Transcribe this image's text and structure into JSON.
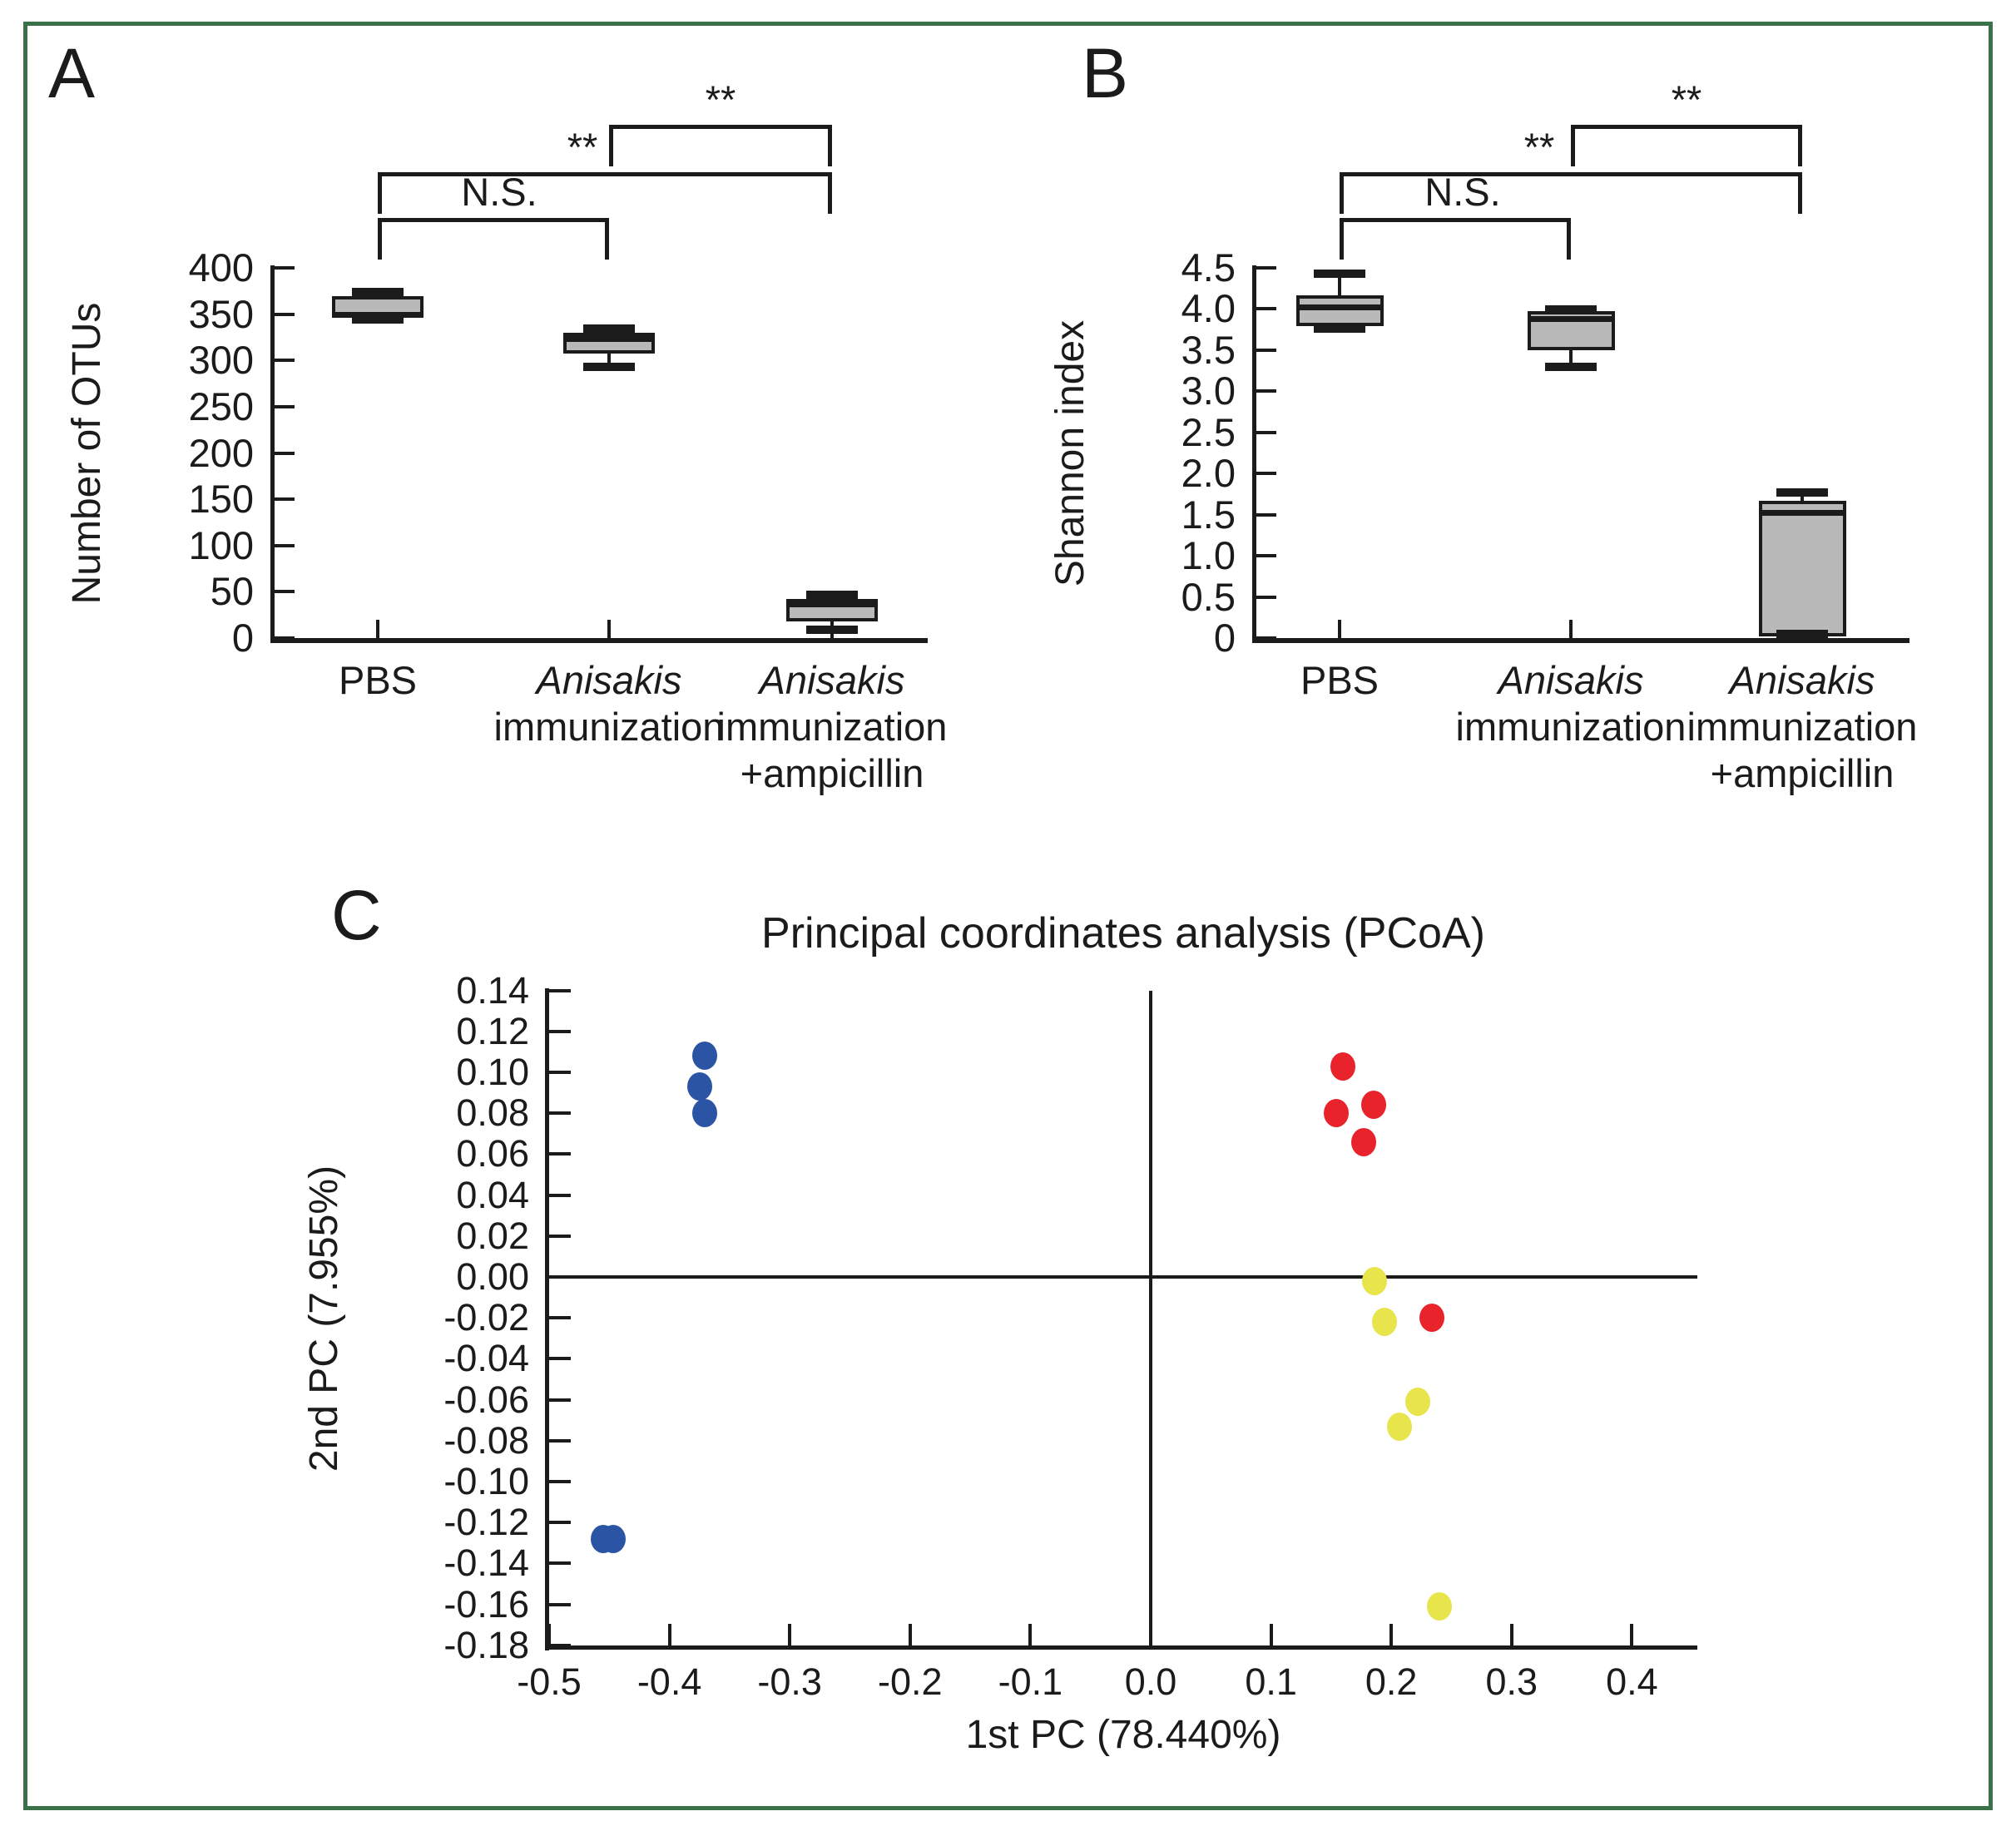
{
  "colors": {
    "ink": "#1b1b1b",
    "box_fill": "#b9b9b9",
    "frame": "#3a7148",
    "blue": "#2b54a4",
    "red": "#e8232b",
    "yellow": "#e7e44c"
  },
  "panel_a": {
    "label": "A",
    "y_axis_label": "Number of OTUs",
    "y_ticks": [
      "400",
      "350",
      "300",
      "250",
      "200",
      "150",
      "100",
      "50",
      "0"
    ],
    "groups": [
      {
        "lines": [
          {
            "text": "PBS",
            "italic": false
          }
        ]
      },
      {
        "lines": [
          {
            "text": "Anisakis",
            "italic": true
          },
          {
            "text": "immunization",
            "italic": false
          }
        ]
      },
      {
        "lines": [
          {
            "text": "Anisakis",
            "italic": true
          },
          {
            "text": "immunization",
            "italic": false
          },
          {
            "text": "+ampicillin",
            "italic": false
          }
        ]
      }
    ],
    "boxes": [
      {
        "group": "PBS",
        "min": 344,
        "q1": 347,
        "median": 350,
        "q3": 369,
        "max": 374
      },
      {
        "group": "Anisakis immunization",
        "min": 293,
        "q1": 307,
        "median": 324,
        "q3": 330,
        "max": 334
      },
      {
        "group": "Anisakis immunization +ampicillin",
        "min": 9,
        "q1": 18,
        "median": 37,
        "q3": 42,
        "max": 47
      }
    ],
    "significance": [
      {
        "between": [
          0,
          1
        ],
        "label": "N.S."
      },
      {
        "between": [
          0,
          2
        ],
        "label": "**"
      },
      {
        "between": [
          1,
          2
        ],
        "label": "**"
      }
    ]
  },
  "panel_b": {
    "label": "B",
    "y_axis_label": "Shannon index",
    "y_ticks": [
      "4.5",
      "4.0",
      "3.5",
      "3.0",
      "2.5",
      "2.0",
      "1.5",
      "1.0",
      "0.5",
      "0"
    ],
    "groups": [
      {
        "lines": [
          {
            "text": "PBS",
            "italic": false
          }
        ]
      },
      {
        "lines": [
          {
            "text": "Anisakis",
            "italic": true
          },
          {
            "text": "immunization",
            "italic": false
          }
        ]
      },
      {
        "lines": [
          {
            "text": "Anisakis",
            "italic": true
          },
          {
            "text": "immunization",
            "italic": false
          },
          {
            "text": "+ampicillin",
            "italic": false
          }
        ]
      }
    ],
    "boxes": [
      {
        "group": "PBS",
        "min": 3.76,
        "q1": 3.79,
        "median": 4.02,
        "q3": 4.17,
        "max": 4.43
      },
      {
        "group": "Anisakis immunization",
        "min": 3.3,
        "q1": 3.5,
        "median": 3.88,
        "q3": 3.97,
        "max": 3.99
      },
      {
        "group": "Anisakis immunization +ampicillin",
        "min": 0.05,
        "q1": 0.02,
        "median": 1.53,
        "q3": 1.67,
        "max": 1.77
      }
    ],
    "significance": [
      {
        "between": [
          0,
          1
        ],
        "label": "N.S."
      },
      {
        "between": [
          0,
          2
        ],
        "label": "**"
      },
      {
        "between": [
          1,
          2
        ],
        "label": "**"
      }
    ]
  },
  "panel_c": {
    "label": "C",
    "title": "Principal coordinates analysis (PCoA)",
    "x_axis_label": "1st PC (78.440%)",
    "y_axis_label": "2nd PC (7.955%)",
    "x_ticks": [
      "-0.5",
      "-0.4",
      "-0.3",
      "-0.2",
      "-0.1",
      "0.0",
      "0.1",
      "0.2",
      "0.3",
      "0.4"
    ],
    "y_ticks": [
      "0.14",
      "0.12",
      "0.10",
      "0.08",
      "0.06",
      "0.04",
      "0.02",
      "0.00",
      "-0.02",
      "-0.04",
      "-0.06",
      "-0.08",
      "-0.10",
      "-0.12",
      "-0.14",
      "-0.16",
      "-0.18"
    ],
    "series": [
      {
        "name": "blue",
        "color_key": "blue",
        "points": [
          [
            -0.371,
            0.108
          ],
          [
            -0.375,
            0.093
          ],
          [
            -0.371,
            0.08
          ],
          [
            -0.455,
            -0.128
          ],
          [
            -0.447,
            -0.128
          ]
        ]
      },
      {
        "name": "red",
        "color_key": "red",
        "points": [
          [
            0.16,
            0.103
          ],
          [
            0.154,
            0.08
          ],
          [
            0.185,
            0.084
          ],
          [
            0.177,
            0.066
          ],
          [
            0.234,
            -0.02
          ]
        ]
      },
      {
        "name": "yellow",
        "color_key": "yellow",
        "points": [
          [
            0.186,
            -0.002
          ],
          [
            0.194,
            -0.022
          ],
          [
            0.222,
            -0.061
          ],
          [
            0.207,
            -0.073
          ],
          [
            0.24,
            -0.161
          ]
        ]
      }
    ]
  },
  "chart_data": [
    {
      "type": "boxplot",
      "panel": "A",
      "ylabel": "Number of OTUs",
      "ylim": [
        0,
        400
      ],
      "ytick_step": 50,
      "categories": [
        "PBS",
        "Anisakis immunization",
        "Anisakis immunization +ampicillin"
      ],
      "boxes": [
        {
          "min": 344,
          "q1": 347,
          "median": 350,
          "q3": 369,
          "max": 374
        },
        {
          "min": 293,
          "q1": 307,
          "median": 324,
          "q3": 330,
          "max": 334
        },
        {
          "min": 9,
          "q1": 18,
          "median": 37,
          "q3": 42,
          "max": 47
        }
      ],
      "significance": [
        {
          "pair": [
            "PBS",
            "Anisakis immunization"
          ],
          "label": "N.S."
        },
        {
          "pair": [
            "PBS",
            "Anisakis immunization +ampicillin"
          ],
          "label": "**"
        },
        {
          "pair": [
            "Anisakis immunization",
            "Anisakis immunization +ampicillin"
          ],
          "label": "**"
        }
      ]
    },
    {
      "type": "boxplot",
      "panel": "B",
      "ylabel": "Shannon index",
      "ylim": [
        0,
        4.5
      ],
      "ytick_step": 0.5,
      "categories": [
        "PBS",
        "Anisakis immunization",
        "Anisakis immunization +ampicillin"
      ],
      "boxes": [
        {
          "min": 3.76,
          "q1": 3.79,
          "median": 4.02,
          "q3": 4.17,
          "max": 4.43
        },
        {
          "min": 3.3,
          "q1": 3.5,
          "median": 3.88,
          "q3": 3.97,
          "max": 3.99
        },
        {
          "min": 0.05,
          "q1": 0.02,
          "median": 1.53,
          "q3": 1.67,
          "max": 1.77
        }
      ],
      "significance": [
        {
          "pair": [
            "PBS",
            "Anisakis immunization"
          ],
          "label": "N.S."
        },
        {
          "pair": [
            "PBS",
            "Anisakis immunization +ampicillin"
          ],
          "label": "**"
        },
        {
          "pair": [
            "Anisakis immunization",
            "Anisakis immunization +ampicillin"
          ],
          "label": "**"
        }
      ]
    },
    {
      "type": "scatter",
      "panel": "C",
      "title": "Principal coordinates analysis (PCoA)",
      "xlabel": "1st PC (78.440%)",
      "ylabel": "2nd PC (7.955%)",
      "xlim": [
        -0.5,
        0.4
      ],
      "ylim": [
        -0.18,
        0.14
      ],
      "grid": false,
      "legend": "none",
      "series": [
        {
          "name": "blue",
          "color": "#2b54a4",
          "points": [
            [
              -0.371,
              0.108
            ],
            [
              -0.375,
              0.093
            ],
            [
              -0.371,
              0.08
            ],
            [
              -0.455,
              -0.128
            ],
            [
              -0.447,
              -0.128
            ]
          ]
        },
        {
          "name": "red",
          "color": "#e8232b",
          "points": [
            [
              0.16,
              0.103
            ],
            [
              0.154,
              0.08
            ],
            [
              0.185,
              0.084
            ],
            [
              0.177,
              0.066
            ],
            [
              0.234,
              -0.02
            ]
          ]
        },
        {
          "name": "yellow",
          "color": "#e7e44c",
          "points": [
            [
              0.186,
              -0.002
            ],
            [
              0.194,
              -0.022
            ],
            [
              0.222,
              -0.061
            ],
            [
              0.207,
              -0.073
            ],
            [
              0.24,
              -0.161
            ]
          ]
        }
      ]
    }
  ]
}
